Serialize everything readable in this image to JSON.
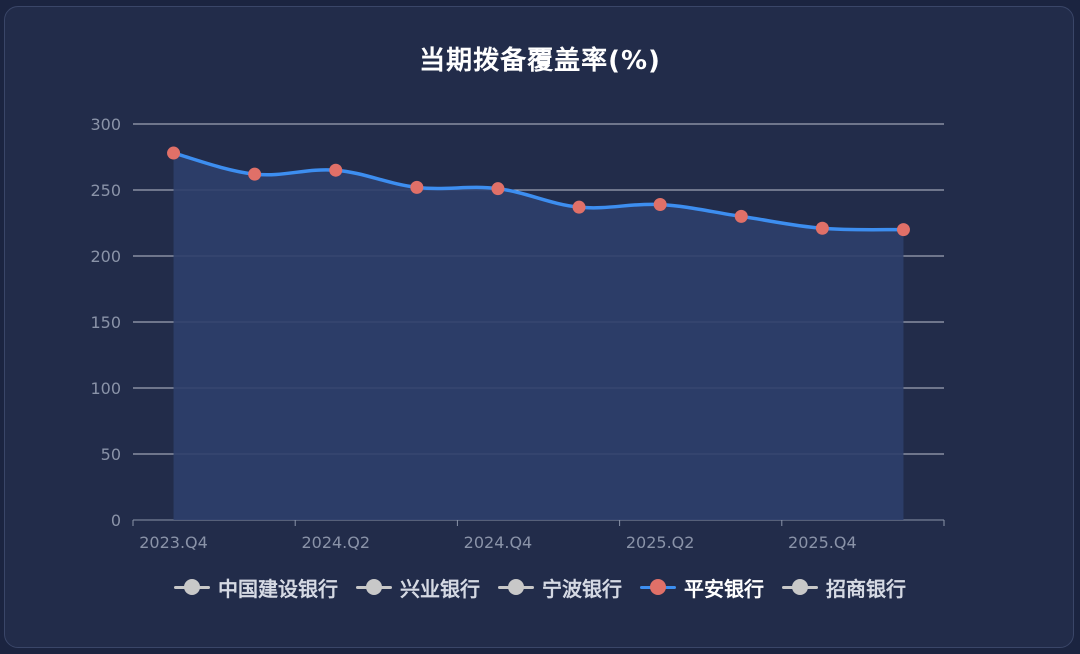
{
  "chart_data": {
    "type": "line",
    "title": "当期拨备覆盖率(%)",
    "categories": [
      "2023.Q4",
      "2024.Q1",
      "2024.Q2",
      "2024.Q3",
      "2024.Q4",
      "2025.Q1",
      "2025.Q2",
      "2025.Q3",
      "2025.Q4",
      "2026.Q1"
    ],
    "x_tick_labels": [
      "2023.Q4",
      "2024.Q2",
      "2024.Q4",
      "2025.Q2",
      "2025.Q4"
    ],
    "ylim": [
      0,
      300
    ],
    "yticks": [
      0,
      50,
      100,
      150,
      200,
      250,
      300
    ],
    "grid": true,
    "legend_position": "bottom",
    "series": [
      {
        "name": "平安银行",
        "values": [
          278,
          262,
          265,
          252,
          251,
          237,
          239,
          230,
          221,
          220
        ],
        "visible": true
      }
    ]
  },
  "legend": [
    {
      "label": "中国建设银行",
      "active": false
    },
    {
      "label": "兴业银行",
      "active": false
    },
    {
      "label": "宁波银行",
      "active": false
    },
    {
      "label": "平安银行",
      "active": true
    },
    {
      "label": "招商银行",
      "active": false
    }
  ],
  "colors": {
    "line": "#3d8ef0",
    "marker": "#e07068",
    "area": "#2d3f6b",
    "inactive": "#c8c8c8",
    "grid": "#d8dce6",
    "axis_text": "#8a93a8"
  }
}
